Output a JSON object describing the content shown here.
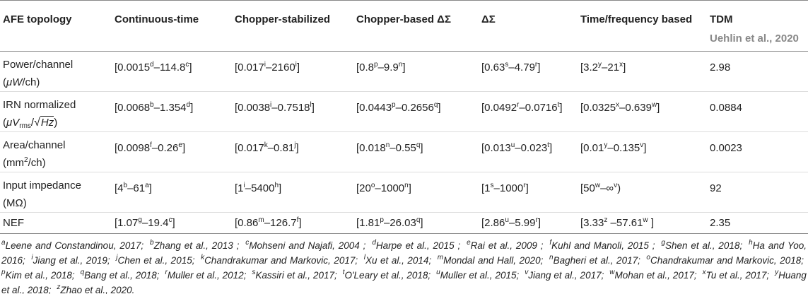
{
  "table": {
    "header": [
      "AFE topology",
      "Continuous-time",
      "Chopper-stabilized",
      "Chopper-based ΔΣ",
      "ΔΣ",
      "Time/frequency based",
      "TDM"
    ],
    "header_note": "Uehlin et al., 2020",
    "rows": [
      {
        "label": [
          [
            "Power/channel"
          ],
          [
            "(",
            {
              "i": "μW"
            },
            "/ch)"
          ]
        ],
        "cells": [
          [
            "[0.0015",
            {
              "sup": "d"
            },
            "–114.8",
            {
              "sup": "c"
            },
            "]"
          ],
          [
            "[0.017",
            {
              "sup": "i"
            },
            "–2160",
            {
              "sup": "i"
            },
            "]"
          ],
          [
            "[0.8",
            {
              "sup": "p"
            },
            "–9.9",
            {
              "sup": "n"
            },
            "]"
          ],
          [
            "[0.63",
            {
              "sup": "s"
            },
            "–4.79",
            {
              "sup": "r"
            },
            "]"
          ],
          [
            "[3.2",
            {
              "sup": "y"
            },
            "–21",
            {
              "sup": "x"
            },
            "]"
          ],
          [
            "2.98"
          ]
        ]
      },
      {
        "label": [
          [
            "IRN normalized"
          ],
          [
            "(",
            {
              "i": "μV"
            },
            {
              "sub": "rms"
            },
            "/",
            {
              "sqrt": "Hz"
            },
            ")"
          ]
        ],
        "cells": [
          [
            "[0.0068",
            {
              "sup": "b"
            },
            "–1.354",
            {
              "sup": "d"
            },
            "]"
          ],
          [
            "[0.0038",
            {
              "sup": "i"
            },
            "–0.7518",
            {
              "sup": "l"
            },
            "]"
          ],
          [
            "[0.0443",
            {
              "sup": "p"
            },
            "–0.2656",
            {
              "sup": "q"
            },
            "]"
          ],
          [
            "[0.0492",
            {
              "sup": "r"
            },
            "–0.0716",
            {
              "sup": "t"
            },
            "]"
          ],
          [
            "[0.0325",
            {
              "sup": "x"
            },
            "–0.639",
            {
              "sup": "w"
            },
            "]"
          ],
          [
            "0.0884"
          ]
        ]
      },
      {
        "label": [
          [
            "Area/channel"
          ],
          [
            "(mm",
            {
              "sup": "2"
            },
            "/ch)"
          ]
        ],
        "cells": [
          [
            "[0.0098",
            {
              "sup": "f"
            },
            "–0.26",
            {
              "sup": "e"
            },
            "]"
          ],
          [
            "[0.017",
            {
              "sup": "k"
            },
            "–0.81",
            {
              "sup": "j"
            },
            "]"
          ],
          [
            "[0.018",
            {
              "sup": "n"
            },
            "–0.55",
            {
              "sup": "q"
            },
            "]"
          ],
          [
            "[0.013",
            {
              "sup": "u"
            },
            "–0.023",
            {
              "sup": "t"
            },
            "]"
          ],
          [
            "[0.01",
            {
              "sup": "y"
            },
            "–0.135",
            {
              "sup": "v"
            },
            "]"
          ],
          [
            "0.0023"
          ]
        ]
      },
      {
        "label": [
          [
            "Input impedance"
          ],
          [
            "(MΩ)"
          ]
        ],
        "cells": [
          [
            "[4",
            {
              "sup": "b"
            },
            "–61",
            {
              "sup": "a"
            },
            "]"
          ],
          [
            "[1",
            {
              "sup": "i"
            },
            "–5400",
            {
              "sup": "h"
            },
            "]"
          ],
          [
            "[20",
            {
              "sup": "o"
            },
            "–1000",
            {
              "sup": "n"
            },
            "]"
          ],
          [
            "[1",
            {
              "sup": "s"
            },
            "–1000",
            {
              "sup": "r"
            },
            "]"
          ],
          [
            "[50",
            {
              "sup": "w"
            },
            "–∞",
            {
              "sup": "v"
            },
            ")"
          ],
          [
            "92"
          ]
        ]
      },
      {
        "label": [
          [
            "NEF"
          ]
        ],
        "cells": [
          [
            "[1.07",
            {
              "sup": "g"
            },
            "–19.4",
            {
              "sup": "c"
            },
            "]"
          ],
          [
            "[0.86",
            {
              "sup": "m"
            },
            "–126.7",
            {
              "sup": "f"
            },
            "]"
          ],
          [
            "[1.81",
            {
              "sup": "p"
            },
            "–26.03",
            {
              "sup": "q"
            },
            "]"
          ],
          [
            "[2.86",
            {
              "sup": "u"
            },
            "–5.99",
            {
              "sup": "r"
            },
            "]"
          ],
          [
            "[3.33",
            {
              "sup": "z"
            },
            " –57.61",
            {
              "sup": "w"
            },
            " ]"
          ],
          [
            "2.35"
          ]
        ]
      }
    ]
  },
  "footnotes": [
    {
      "mark": "a",
      "text": "Leene and Constandinou, 2017;"
    },
    {
      "mark": "b",
      "text": "Zhang et al., 2013 ;"
    },
    {
      "mark": "c",
      "text": "Mohseni and Najafi, 2004 ;"
    },
    {
      "mark": "d",
      "text": "Harpe et al., 2015 ;"
    },
    {
      "mark": "e",
      "text": "Rai et al., 2009 ;"
    },
    {
      "mark": "f",
      "text": "Kuhl and Manoli, 2015 ;"
    },
    {
      "mark": "g",
      "text": "Shen et al., 2018;"
    },
    {
      "mark": "h",
      "text": "Ha and Yoo, 2016;"
    },
    {
      "mark": "i",
      "text": "Jiang et al., 2019;"
    },
    {
      "mark": "j",
      "text": "Chen et al., 2015;"
    },
    {
      "mark": "k",
      "text": "Chandrakumar and Markovic, 2017;"
    },
    {
      "mark": "l",
      "text": "Xu et al., 2014;"
    },
    {
      "mark": "m",
      "text": "Mondal and Hall, 2020;"
    },
    {
      "mark": "n",
      "text": "Bagheri et al., 2017;"
    },
    {
      "mark": "o",
      "text": "Chandrakumar and Markovic, 2018;"
    },
    {
      "mark": "p",
      "text": "Kim et al., 2018;"
    },
    {
      "mark": "q",
      "text": "Bang et al., 2018;"
    },
    {
      "mark": "r",
      "text": "Muller et al., 2012;"
    },
    {
      "mark": "s",
      "text": "Kassiri et al., 2017;"
    },
    {
      "mark": "t",
      "text": "O'Leary et al., 2018;"
    },
    {
      "mark": "u",
      "text": "Muller et al., 2015;"
    },
    {
      "mark": "v",
      "text": "Jiang et al., 2017;"
    },
    {
      "mark": "w",
      "text": "Mohan et al., 2017;"
    },
    {
      "mark": "x",
      "text": "Tu et al., 2017;"
    },
    {
      "mark": "y",
      "text": "Huang et al., 2018;"
    },
    {
      "mark": "z",
      "text": "Zhao et al., 2020."
    }
  ]
}
